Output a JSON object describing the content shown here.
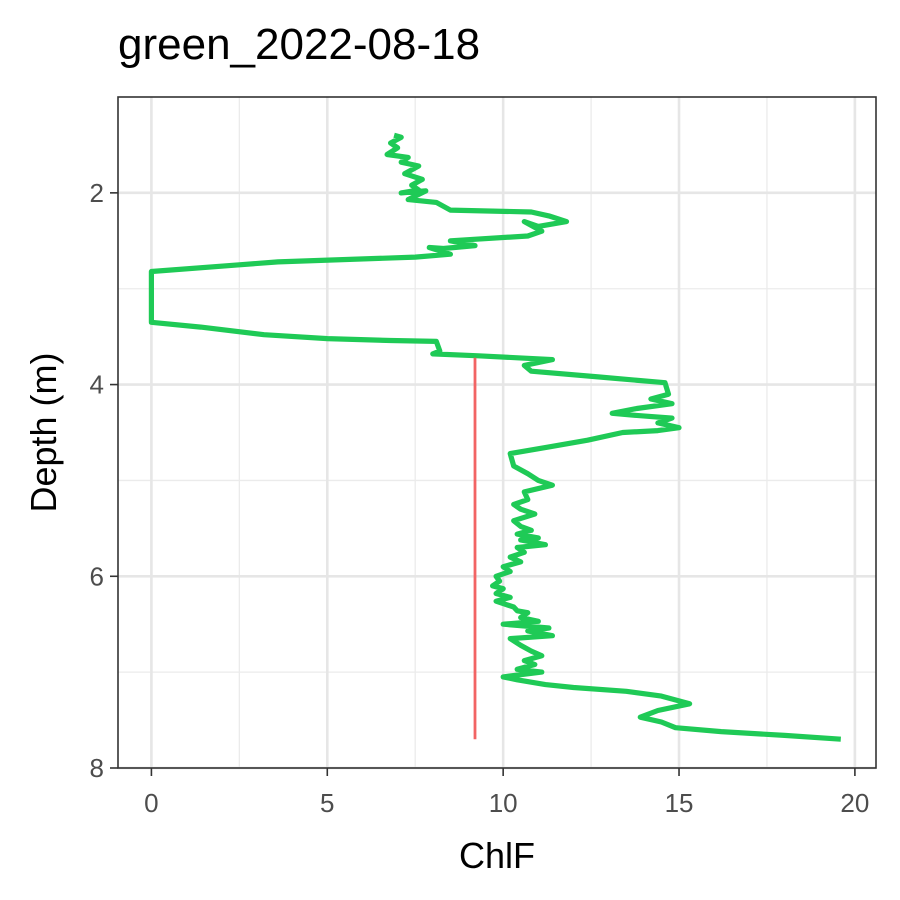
{
  "chart_data": {
    "type": "line",
    "title": "green_2022-08-18",
    "xlabel": "ChlF",
    "ylabel": "Depth (m)",
    "xlim": [
      -0.95,
      20.6
    ],
    "ylim": [
      8.0,
      1.0
    ],
    "y_reversed": true,
    "x_ticks": [
      0,
      5,
      10,
      15,
      20
    ],
    "y_ticks": [
      2,
      4,
      6,
      8
    ],
    "grid": true,
    "legend": "none",
    "series": [
      {
        "color": "#1fca56",
        "points": [
          [
            6.9,
            1.4
          ],
          [
            7.1,
            1.42
          ],
          [
            6.8,
            1.48
          ],
          [
            7.0,
            1.53
          ],
          [
            6.7,
            1.6
          ],
          [
            7.3,
            1.63
          ],
          [
            7.1,
            1.68
          ],
          [
            7.6,
            1.72
          ],
          [
            7.2,
            1.8
          ],
          [
            7.7,
            1.86
          ],
          [
            7.4,
            1.92
          ],
          [
            7.6,
            1.97
          ],
          [
            7.1,
            2.0
          ],
          [
            7.8,
            1.98
          ],
          [
            7.3,
            2.07
          ],
          [
            8.1,
            2.1
          ],
          [
            8.5,
            2.18
          ],
          [
            10.8,
            2.2
          ],
          [
            11.3,
            2.24
          ],
          [
            11.8,
            2.3
          ],
          [
            11.0,
            2.35
          ],
          [
            10.6,
            2.3
          ],
          [
            11.1,
            2.4
          ],
          [
            10.7,
            2.45
          ],
          [
            8.5,
            2.5
          ],
          [
            9.2,
            2.55
          ],
          [
            8.3,
            2.58
          ],
          [
            7.9,
            2.57
          ],
          [
            8.5,
            2.64
          ],
          [
            7.5,
            2.67
          ],
          [
            3.6,
            2.72
          ],
          [
            2.5,
            2.75
          ],
          [
            0.0,
            2.82
          ],
          [
            0.0,
            3.35
          ],
          [
            1.4,
            3.4
          ],
          [
            3.2,
            3.48
          ],
          [
            5.0,
            3.52
          ],
          [
            6.8,
            3.54
          ],
          [
            8.1,
            3.55
          ],
          [
            8.2,
            3.65
          ],
          [
            8.0,
            3.68
          ],
          [
            9.3,
            3.7
          ],
          [
            11.4,
            3.74
          ],
          [
            10.6,
            3.8
          ],
          [
            10.8,
            3.86
          ],
          [
            12.7,
            3.92
          ],
          [
            14.6,
            3.98
          ],
          [
            14.7,
            4.1
          ],
          [
            14.2,
            4.15
          ],
          [
            14.8,
            4.2
          ],
          [
            13.8,
            4.25
          ],
          [
            13.1,
            4.3
          ],
          [
            13.7,
            4.32
          ],
          [
            14.8,
            4.35
          ],
          [
            14.4,
            4.4
          ],
          [
            15.0,
            4.45
          ],
          [
            14.4,
            4.48
          ],
          [
            13.4,
            4.5
          ],
          [
            12.4,
            4.58
          ],
          [
            11.3,
            4.65
          ],
          [
            10.2,
            4.72
          ],
          [
            10.3,
            4.85
          ],
          [
            10.7,
            4.93
          ],
          [
            11.0,
            5.0
          ],
          [
            11.4,
            5.05
          ],
          [
            10.6,
            5.12
          ],
          [
            10.7,
            5.2
          ],
          [
            10.3,
            5.25
          ],
          [
            10.5,
            5.3
          ],
          [
            10.9,
            5.35
          ],
          [
            10.3,
            5.42
          ],
          [
            10.5,
            5.48
          ],
          [
            10.8,
            5.52
          ],
          [
            10.4,
            5.56
          ],
          [
            11.0,
            5.6
          ],
          [
            10.5,
            5.62
          ],
          [
            11.2,
            5.67
          ],
          [
            10.4,
            5.7
          ],
          [
            10.6,
            5.75
          ],
          [
            10.2,
            5.8
          ],
          [
            10.5,
            5.85
          ],
          [
            10.0,
            5.9
          ],
          [
            10.2,
            5.95
          ],
          [
            9.8,
            6.0
          ],
          [
            9.9,
            6.05
          ],
          [
            9.7,
            6.1
          ],
          [
            10.0,
            6.13
          ],
          [
            9.8,
            6.18
          ],
          [
            10.2,
            6.22
          ],
          [
            9.8,
            6.26
          ],
          [
            10.3,
            6.32
          ],
          [
            10.4,
            6.36
          ],
          [
            10.7,
            6.38
          ],
          [
            10.5,
            6.43
          ],
          [
            11.0,
            6.47
          ],
          [
            10.0,
            6.5
          ],
          [
            11.3,
            6.54
          ],
          [
            10.7,
            6.57
          ],
          [
            11.4,
            6.62
          ],
          [
            10.2,
            6.65
          ],
          [
            10.5,
            6.72
          ],
          [
            10.8,
            6.78
          ],
          [
            11.1,
            6.83
          ],
          [
            10.6,
            6.88
          ],
          [
            10.9,
            6.92
          ],
          [
            10.4,
            6.97
          ],
          [
            11.1,
            7.0
          ],
          [
            10.0,
            7.05
          ],
          [
            10.4,
            7.08
          ],
          [
            11.2,
            7.13
          ],
          [
            12.0,
            7.16
          ],
          [
            13.5,
            7.2
          ],
          [
            14.5,
            7.25
          ],
          [
            15.3,
            7.33
          ],
          [
            14.4,
            7.4
          ],
          [
            13.9,
            7.47
          ],
          [
            14.5,
            7.52
          ],
          [
            14.9,
            7.58
          ],
          [
            16.2,
            7.62
          ],
          [
            18.0,
            7.66
          ],
          [
            19.6,
            7.7
          ]
        ]
      },
      {
        "color": "#f26464",
        "points": [
          [
            9.2,
            3.72
          ],
          [
            9.2,
            7.7
          ]
        ]
      }
    ]
  }
}
